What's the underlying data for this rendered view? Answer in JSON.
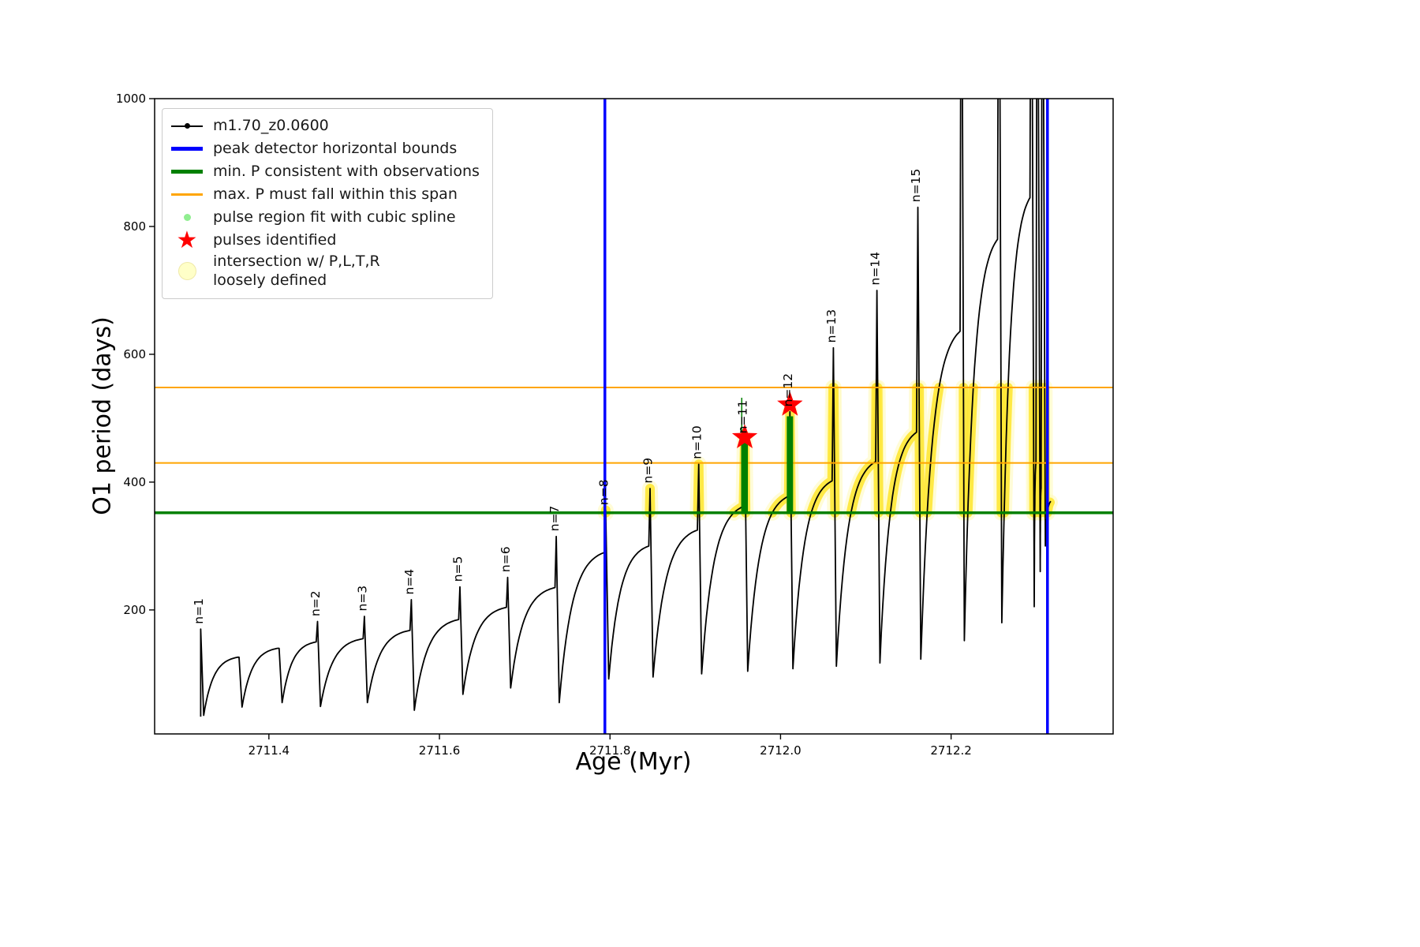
{
  "figure": {
    "xlabel": "Age (Myr)",
    "ylabel": "O1 period (days)",
    "background": "#ffffff"
  },
  "legend": {
    "items": [
      {
        "label": "m1.70_z0.0600",
        "marker": "line-with-dot",
        "color": "#000000"
      },
      {
        "label": "peak detector horizontal bounds",
        "marker": "thick-line",
        "color": "#0000ff"
      },
      {
        "label": "min. P consistent with observations",
        "marker": "thick-line",
        "color": "#008000"
      },
      {
        "label": "max. P must fall within this span",
        "marker": "line",
        "color": "#ffa500"
      },
      {
        "label": "pulse region fit with cubic spline",
        "marker": "small-dot",
        "color": "#90ee90"
      },
      {
        "label": "pulses identified",
        "marker": "star",
        "color": "#ff0000"
      },
      {
        "label": "intersection w/ P,L,T,R\nloosely defined",
        "marker": "large-dot",
        "color": "#ffffc8"
      }
    ]
  },
  "chart_data": {
    "type": "line",
    "title": "",
    "xlabel": "Age (Myr)",
    "ylabel": "O1 period (days)",
    "series_name": "m1.70_z0.0600",
    "curve_color": "#000000",
    "xlim": [
      2711.266,
      2712.39
    ],
    "ylim": [
      6,
      1000
    ],
    "x_ticks": {
      "values": [
        2711.4,
        2711.6,
        2711.8,
        2712.0,
        2712.2
      ],
      "labels": [
        "2711.4",
        "2711.6",
        "2711.8",
        "2712.0",
        "2712.2"
      ]
    },
    "y_ticks": {
      "values": [
        200,
        400,
        600,
        800,
        1000
      ],
      "labels": [
        "200",
        "400",
        "600",
        "800",
        "1000"
      ]
    },
    "pulse_cycles": [
      {
        "label": "n=1",
        "x": 2711.32,
        "peak": 170,
        "dip": 35,
        "rise_to": 126
      },
      {
        "x": 2711.365,
        "peak": 126,
        "dip": 48,
        "rise_to": 140
      },
      {
        "x": 2711.412,
        "peak": 140,
        "dip": 55,
        "rise_to": 150
      },
      {
        "label": "n=2",
        "x": 2711.457,
        "peak": 182,
        "dip": 49,
        "rise_to": 155
      },
      {
        "label": "n=3",
        "x": 2711.512,
        "peak": 190,
        "dip": 55,
        "rise_to": 168
      },
      {
        "label": "n=4",
        "x": 2711.567,
        "peak": 216,
        "dip": 43,
        "rise_to": 185
      },
      {
        "label": "n=5",
        "x": 2711.624,
        "peak": 236,
        "dip": 68,
        "rise_to": 204
      },
      {
        "label": "n=6",
        "x": 2711.68,
        "peak": 251,
        "dip": 78,
        "rise_to": 235
      },
      {
        "label": "n=7",
        "x": 2711.737,
        "peak": 315,
        "dip": 55,
        "rise_to": 290
      },
      {
        "label": "n=8",
        "x": 2711.795,
        "peak": 356,
        "dip": 92,
        "rise_to": 300
      },
      {
        "label": "n=9",
        "x": 2711.847,
        "peak": 390,
        "dip": 95,
        "rise_to": 325
      },
      {
        "label": "n=10",
        "x": 2711.904,
        "peak": 428,
        "dip": 100,
        "rise_to": 362
      },
      {
        "label": "n=11",
        "x": 2711.958,
        "peak": 468,
        "dip": 104,
        "rise_to": 378
      },
      {
        "label": "n=12",
        "x": 2712.011,
        "peak": 510,
        "dip": 108,
        "rise_to": 402
      },
      {
        "label": "n=13",
        "x": 2712.062,
        "peak": 610,
        "dip": 112,
        "rise_to": 432
      },
      {
        "label": "n=14",
        "x": 2712.113,
        "peak": 700,
        "dip": 117,
        "rise_to": 478
      },
      {
        "label": "n=15",
        "x": 2712.161,
        "peak": 830,
        "dip": 123,
        "rise_to": 636
      },
      {
        "x": 2712.212,
        "peak": 1500,
        "dip": 152,
        "rise_to": 780
      },
      {
        "x": 2712.256,
        "peak": 1500,
        "dip": 180,
        "rise_to": 845
      },
      {
        "x": 2712.294,
        "peak": 1500,
        "dip": 205,
        "rise_to": 430
      },
      {
        "x": 2712.301,
        "peak": 1500,
        "dip": 260,
        "rise_to": 390
      },
      {
        "x": 2712.307,
        "peak": 1500,
        "dip": 300,
        "rise_to": 370
      }
    ],
    "end_x": 2712.317,
    "vlines": {
      "label": "peak detector horizontal bounds",
      "color": "#0000ff",
      "xs": [
        2711.794,
        2712.313
      ]
    },
    "hline_min_P": {
      "label": "min. P consistent with observations",
      "color": "#008000",
      "y": 352
    },
    "hlines_max_span": {
      "label": "max. P must fall within this span",
      "color": "#ffa500",
      "ys": [
        430,
        548
      ]
    },
    "intersection_band": {
      "label": "intersection w/ P,L,T,R loosely defined",
      "color": "#ffe735",
      "halo_color": "#fff9b8",
      "y_range": [
        352,
        548
      ],
      "x_range": [
        2711.794,
        2712.316
      ]
    },
    "pulse_fit": {
      "label": "pulse region fit with cubic spline",
      "color": "#008000",
      "bars": [
        {
          "x": 2711.958,
          "y1": 352,
          "y2": 466
        },
        {
          "x": 2712.011,
          "y1": 352,
          "y2": 503
        }
      ],
      "thin_line": {
        "x": 2711.9545,
        "y1": 352,
        "y2": 532
      }
    },
    "pulses_identified": {
      "label": "pulses identified",
      "color": "#ff0000",
      "points": [
        {
          "x": 2711.958,
          "y": 470
        },
        {
          "x": 2712.011,
          "y": 521
        }
      ]
    }
  }
}
